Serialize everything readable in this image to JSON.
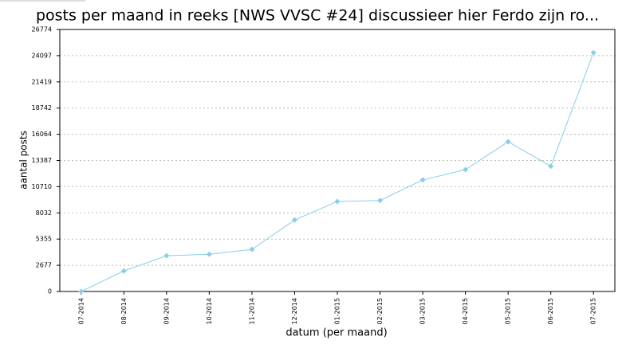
{
  "chart_data": {
    "type": "line",
    "title": "posts per maand in reeks [NWS VVSC #24] discussieer hier Ferdo zijn ro...",
    "x_label": "datum (per maand)",
    "y_label": "aantal posts",
    "categories": [
      "07-2014",
      "08-2014",
      "09-2014",
      "10-2014",
      "11-2014",
      "12-2014",
      "01-2015",
      "02-2015",
      "03-2015",
      "04-2015",
      "05-2015",
      "06-2015",
      "07-2015"
    ],
    "series": [
      {
        "name": "aantal posts",
        "color": "#87ceeb",
        "values": [
          0,
          2100,
          3650,
          3800,
          4300,
          7300,
          9200,
          9300,
          11400,
          12450,
          15300,
          12800,
          24400
        ]
      }
    ],
    "ylim": [
      0,
      26774
    ],
    "yticks": [
      0,
      2677,
      5355,
      8032,
      10710,
      13387,
      16064,
      18742,
      21419,
      24097,
      26774
    ],
    "grid": true
  }
}
